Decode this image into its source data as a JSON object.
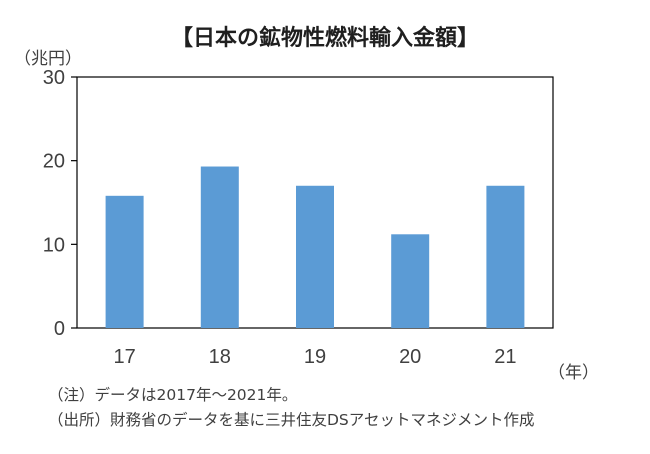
{
  "chart_data": {
    "type": "bar",
    "title": "【日本の鉱物性燃料輸入金額】",
    "ylabel": "（兆円）",
    "xlabel": "（年）",
    "categories": [
      "17",
      "18",
      "19",
      "20",
      "21"
    ],
    "values": [
      15.8,
      19.3,
      17.0,
      11.2,
      17.0
    ],
    "ylim": [
      0,
      30
    ],
    "yticks": [
      "0",
      "10",
      "20",
      "30"
    ],
    "ytick_values": [
      0,
      10,
      20,
      30
    ],
    "bar_color": "#5b9bd5",
    "legend": "none",
    "grid": false
  },
  "notes": {
    "note1": "（注）データは2017年～2021年。",
    "note2": "（出所）財務省のデータを基に三井住友DSアセットマネジメント作成"
  }
}
